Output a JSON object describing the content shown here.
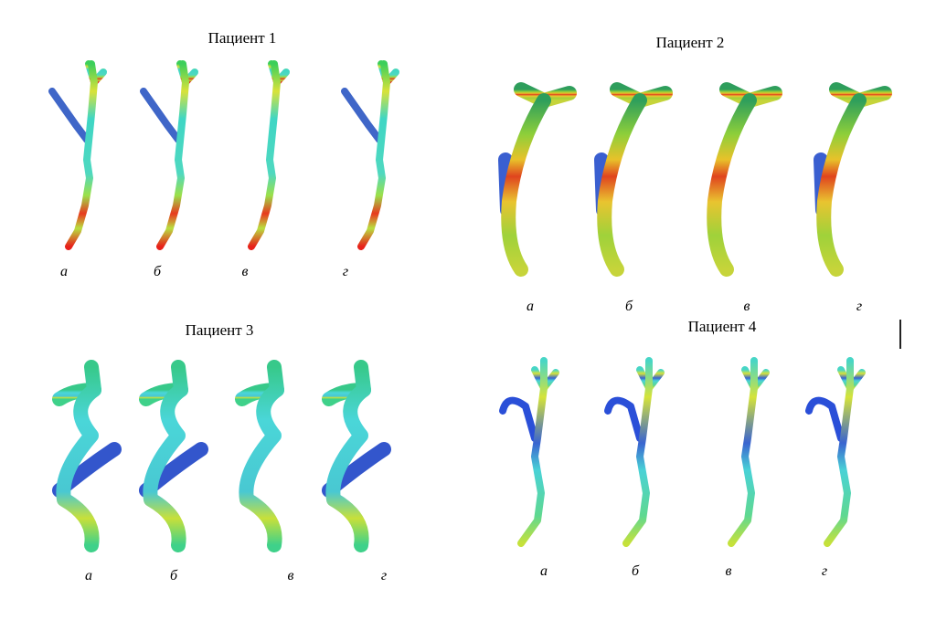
{
  "panels": [
    {
      "title": "Пациент 1",
      "labels": [
        "а",
        "б",
        "в",
        "г"
      ]
    },
    {
      "title": "Пациент 2",
      "labels": [
        "а",
        "б",
        "в",
        "г"
      ]
    },
    {
      "title": "Пациент 3",
      "labels": [
        "а",
        "б",
        "в",
        "г"
      ]
    },
    {
      "title": "Пациент 4",
      "labels": [
        "а",
        "б",
        "в",
        "г"
      ]
    }
  ]
}
